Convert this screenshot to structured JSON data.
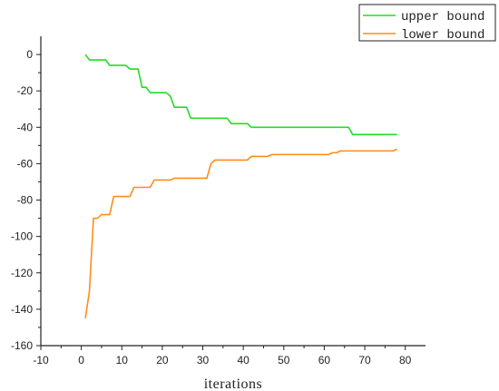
{
  "chart_data": {
    "type": "line",
    "xlabel": "iterations",
    "ylabel": "",
    "xlim": [
      -10,
      85
    ],
    "ylim": [
      -160,
      10
    ],
    "xticks": [
      -10,
      0,
      10,
      20,
      30,
      40,
      50,
      60,
      70,
      80
    ],
    "yticks": [
      0,
      -20,
      -40,
      -60,
      -80,
      -100,
      -120,
      -140,
      -160
    ],
    "grid": false,
    "legend_position": "top-right",
    "series": [
      {
        "name": "upper bound",
        "color": "#22dd22",
        "points": [
          [
            1,
            0
          ],
          [
            2,
            -3
          ],
          [
            6,
            -3
          ],
          [
            7,
            -6
          ],
          [
            11,
            -6
          ],
          [
            12,
            -8
          ],
          [
            14,
            -8
          ],
          [
            15,
            -18
          ],
          [
            16,
            -18
          ],
          [
            17,
            -21
          ],
          [
            21,
            -21
          ],
          [
            22,
            -23
          ],
          [
            23,
            -29
          ],
          [
            26,
            -29
          ],
          [
            27,
            -35
          ],
          [
            36,
            -35
          ],
          [
            37,
            -38
          ],
          [
            41,
            -38
          ],
          [
            42,
            -40
          ],
          [
            66,
            -40
          ],
          [
            67,
            -44
          ],
          [
            78,
            -44
          ]
        ]
      },
      {
        "name": "lower bound",
        "color": "#ff8c1a",
        "points": [
          [
            1,
            -145
          ],
          [
            2,
            -130
          ],
          [
            3,
            -90
          ],
          [
            4,
            -90
          ],
          [
            5,
            -88
          ],
          [
            6,
            -88
          ],
          [
            7,
            -88
          ],
          [
            8,
            -78
          ],
          [
            12,
            -78
          ],
          [
            13,
            -73
          ],
          [
            17,
            -73
          ],
          [
            18,
            -69
          ],
          [
            22,
            -69
          ],
          [
            23,
            -68
          ],
          [
            31,
            -68
          ],
          [
            32,
            -60
          ],
          [
            33,
            -58
          ],
          [
            41,
            -58
          ],
          [
            42,
            -56
          ],
          [
            46,
            -56
          ],
          [
            47,
            -55
          ],
          [
            61,
            -55
          ],
          [
            62,
            -54
          ],
          [
            63,
            -54
          ],
          [
            64,
            -53
          ],
          [
            77,
            -53
          ],
          [
            78,
            -52
          ]
        ]
      }
    ]
  }
}
